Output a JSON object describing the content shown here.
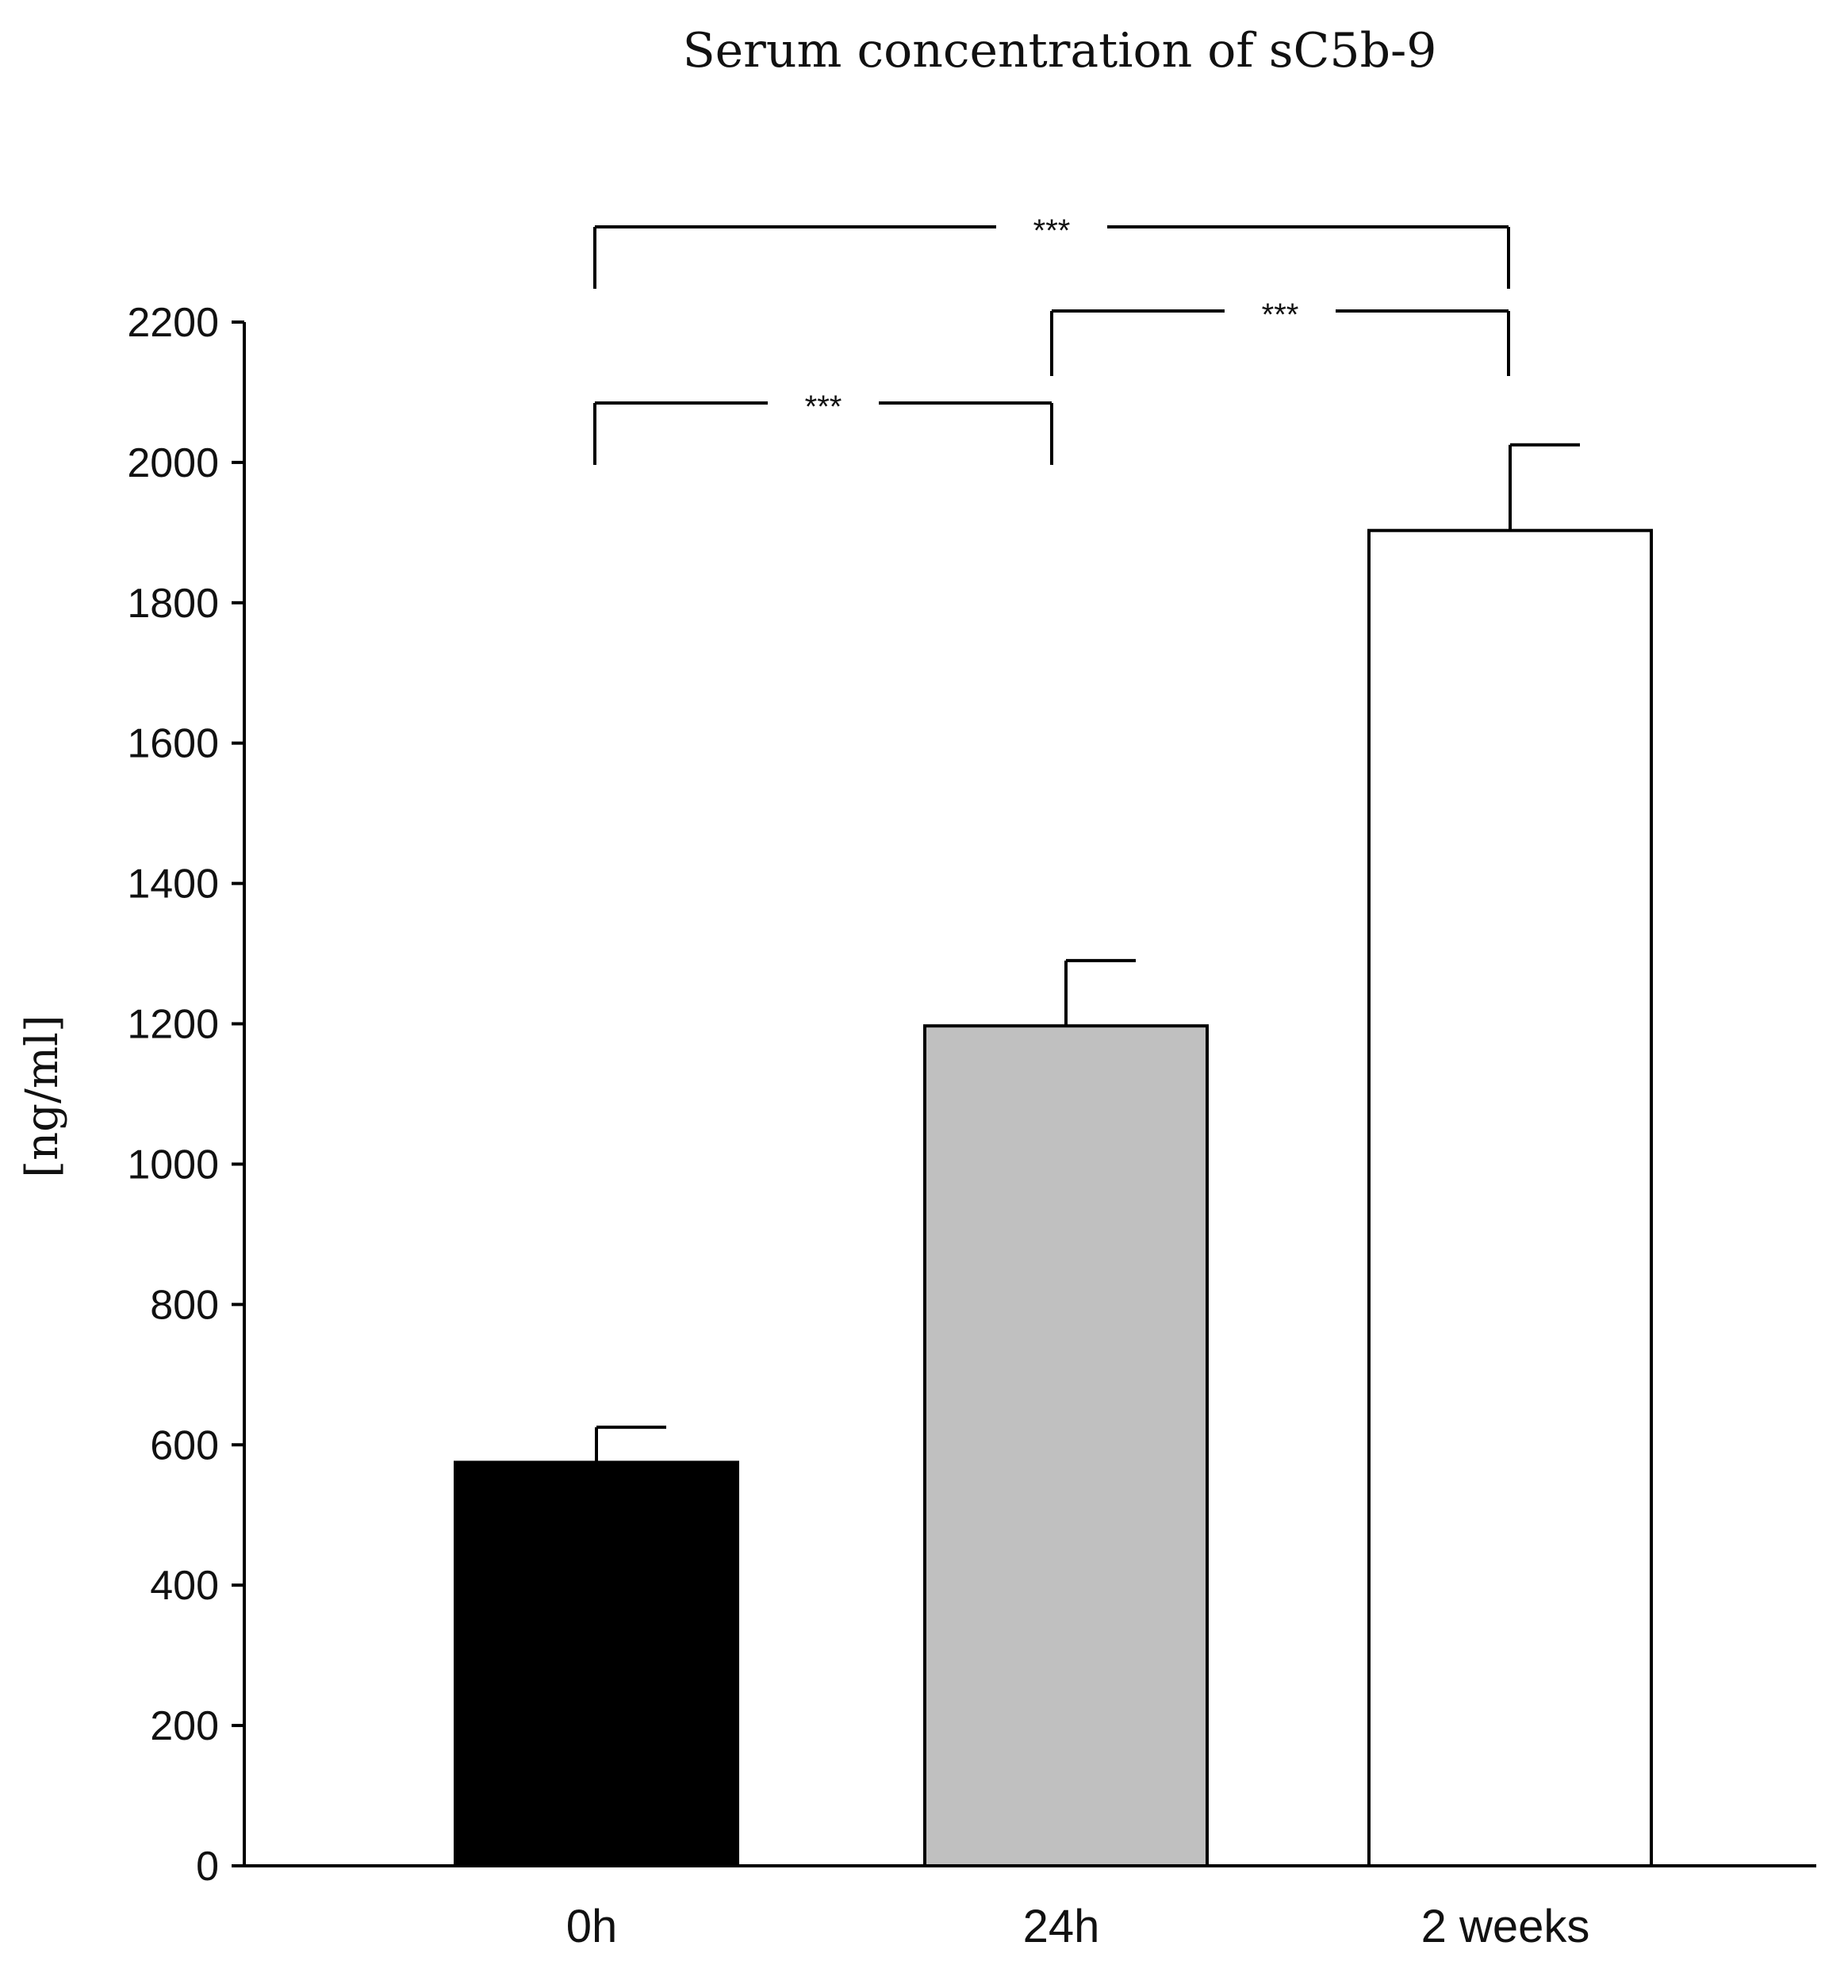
{
  "chart_data": {
    "type": "bar",
    "title": "Serum concentration of sC5b-9",
    "xlabel": "",
    "ylabel": "[ng/ml]",
    "ylim": [
      0,
      2200
    ],
    "yticks": [
      0,
      200,
      400,
      600,
      800,
      1000,
      1200,
      1400,
      1600,
      1800,
      2000,
      2200
    ],
    "categories": [
      "0h",
      "24h",
      "2 weeks"
    ],
    "values": [
      575,
      1197,
      1903
    ],
    "error_upper": [
      625,
      1290,
      2025
    ],
    "bar_colors": [
      "#000000",
      "#c0c0c0",
      "#ffffff"
    ],
    "grid": false,
    "significance": [
      {
        "from": "0h",
        "to": "24h",
        "label": "***"
      },
      {
        "from": "24h",
        "to": "2 weeks",
        "label": "***"
      },
      {
        "from": "0h",
        "to": "2 weeks",
        "label": "***"
      }
    ]
  }
}
